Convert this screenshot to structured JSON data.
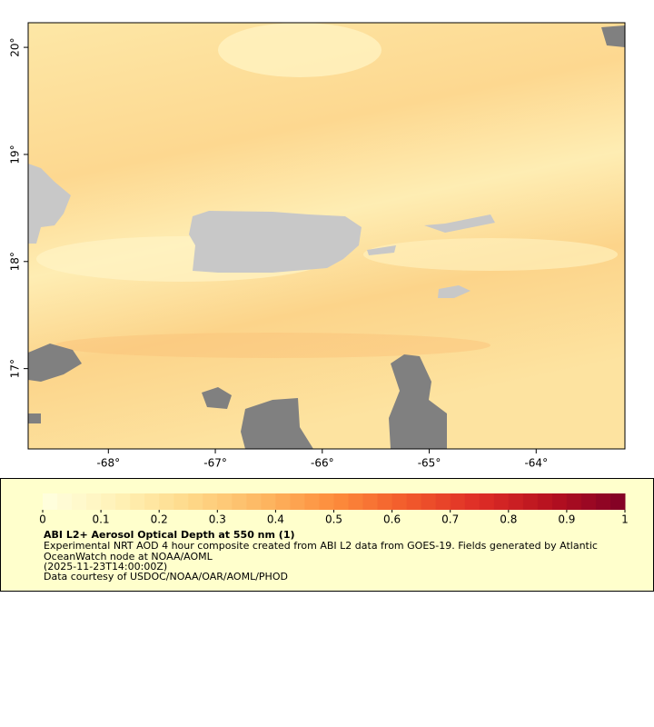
{
  "chart_data": {
    "type": "map",
    "xlim": [
      -68.75,
      -63.17
    ],
    "ylim": [
      16.25,
      20.23
    ],
    "xticks": [
      {
        "value": -68,
        "label": "-68°"
      },
      {
        "value": -67,
        "label": "-67°"
      },
      {
        "value": -66,
        "label": "-66°"
      },
      {
        "value": -65,
        "label": "-65°"
      },
      {
        "value": -64,
        "label": "-64°"
      }
    ],
    "yticks": [
      {
        "value": 17,
        "label": "17°"
      },
      {
        "value": 18,
        "label": "18°"
      },
      {
        "value": 19,
        "label": "19°"
      },
      {
        "value": 20,
        "label": "20°"
      }
    ],
    "colorbar": {
      "lim": [
        0,
        1
      ],
      "ticks": [
        0,
        0.1,
        0.2,
        0.3,
        0.4,
        0.5,
        0.6,
        0.7,
        0.8,
        0.9,
        1
      ],
      "colors": [
        "#ffffe0",
        "#fff2b8",
        "#fed98a",
        "#fdb863",
        "#fd8d3c",
        "#f25a2b",
        "#de2d26",
        "#b5101f",
        "#800026"
      ]
    },
    "title": "ABI L2+ Aerosol Optical Depth at 550 nm (1)",
    "description": [
      "Experimental NRT AOD 4 hour composite created from ABI L2 data from GOES-19. Fields generated by Atlantic",
      "OceanWatch node at NOAA/AOML"
    ],
    "date": "(2025-11-23T14:00:00Z)",
    "credit": "Data courtesy of USDOC/NOAA/OAR/AOML/PHOD"
  }
}
